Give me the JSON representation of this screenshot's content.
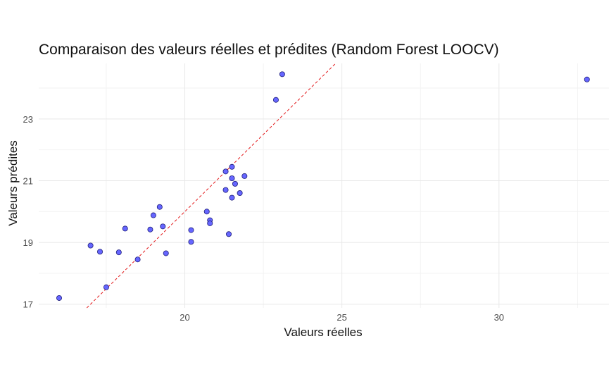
{
  "chart_data": {
    "type": "scatter",
    "title": "Comparaison des valeurs réelles et prédites (Random Forest LOOCV)",
    "xlabel": "Valeurs réelles",
    "ylabel": "Valeurs prédites",
    "xlim": [
      15.35,
      33.5
    ],
    "ylim": [
      16.88,
      24.8
    ],
    "x_ticks": [
      20,
      25,
      30
    ],
    "y_ticks": [
      17,
      19,
      21,
      23
    ],
    "x_minor_ticks": [
      17.5,
      22.5,
      27.5,
      32.5
    ],
    "y_minor_ticks": [
      18,
      20,
      22,
      24
    ],
    "grid": true,
    "legend": "none",
    "reference_line": {
      "type": "y=x",
      "style": "dashed",
      "color": "#e31a1c"
    },
    "point_fill": "#6666ff",
    "point_stroke": "#1f1f7a",
    "points": [
      {
        "x": 16.0,
        "y": 17.2
      },
      {
        "x": 17.0,
        "y": 18.9
      },
      {
        "x": 17.3,
        "y": 18.7
      },
      {
        "x": 17.5,
        "y": 17.55
      },
      {
        "x": 17.9,
        "y": 18.68
      },
      {
        "x": 18.1,
        "y": 19.45
      },
      {
        "x": 18.5,
        "y": 18.45
      },
      {
        "x": 18.9,
        "y": 19.42
      },
      {
        "x": 19.0,
        "y": 19.88
      },
      {
        "x": 19.2,
        "y": 20.15
      },
      {
        "x": 19.3,
        "y": 19.52
      },
      {
        "x": 19.4,
        "y": 18.65
      },
      {
        "x": 20.2,
        "y": 19.4
      },
      {
        "x": 20.2,
        "y": 19.02
      },
      {
        "x": 20.7,
        "y": 20.0
      },
      {
        "x": 20.8,
        "y": 19.72
      },
      {
        "x": 20.8,
        "y": 19.62
      },
      {
        "x": 21.3,
        "y": 20.7
      },
      {
        "x": 21.3,
        "y": 21.3
      },
      {
        "x": 21.4,
        "y": 19.27
      },
      {
        "x": 21.5,
        "y": 21.45
      },
      {
        "x": 21.5,
        "y": 21.08
      },
      {
        "x": 21.5,
        "y": 20.45
      },
      {
        "x": 21.6,
        "y": 20.9
      },
      {
        "x": 21.75,
        "y": 20.6
      },
      {
        "x": 21.9,
        "y": 21.15
      },
      {
        "x": 22.9,
        "y": 23.62
      },
      {
        "x": 23.1,
        "y": 24.45
      },
      {
        "x": 32.8,
        "y": 24.28
      }
    ]
  }
}
